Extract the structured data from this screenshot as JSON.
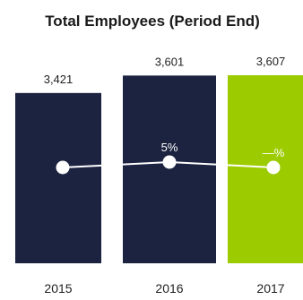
{
  "chart_data": {
    "type": "bar",
    "title": "Total Employees (Period End)",
    "categories": [
      "2015",
      "2016",
      "2017"
    ],
    "values": [
      3421,
      3601,
      3607
    ],
    "value_labels": [
      "3,421",
      "3,601",
      "3,607"
    ],
    "ylim": [
      0,
      3607
    ],
    "colors": [
      "#1c2340",
      "#1c2340",
      "#9ccb00"
    ],
    "growth_line": {
      "labels": [
        "",
        "5%",
        "—%"
      ],
      "line_color": "#ffffff"
    }
  }
}
